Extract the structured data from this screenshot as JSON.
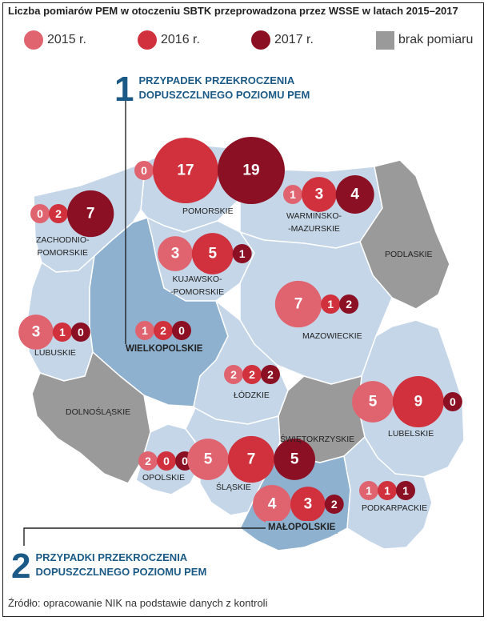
{
  "title": "Liczba pomiarów PEM w otoczeniu SBTK przeprowadzona przez WSSE w latach 2015–2017",
  "legend": {
    "items": [
      {
        "label": "2015 r.",
        "color": "#e06470"
      },
      {
        "label": "2016 r.",
        "color": "#d0313d"
      },
      {
        "label": "2017 r.",
        "color": "#8c1023"
      },
      {
        "label": "brak pomiaru",
        "color": "#9a9a9a"
      }
    ]
  },
  "callouts": [
    {
      "number": "1",
      "line1": "PRZYPADEK PRZEKROCZENIA",
      "line2": "DOPUSZCZLNEGO POZIOMU PEM"
    },
    {
      "number": "2",
      "line1": "PRZYPADKI PRZEKROCZENIA",
      "line2": "DOPUSZCZLNEGO POZIOMU PEM"
    }
  ],
  "regions": {
    "pomorskie": {
      "name": "POMORSKIE",
      "v2015": 0,
      "v2016": 17,
      "v2017": 19
    },
    "zachodniopomorskie": {
      "name1": "ZACHODNIO-",
      "name2": "POMORSKIE",
      "v2015": 0,
      "v2016": 2,
      "v2017": 7
    },
    "warminsko": {
      "name1": "WARMIŃSKO-",
      "name2": "-MAZURSKIE",
      "v2015": 1,
      "v2016": 3,
      "v2017": 4
    },
    "kujawsko": {
      "name1": "KUJAWSKO-",
      "name2": "-POMORSKIE",
      "v2015": 3,
      "v2016": 5,
      "v2017": 1
    },
    "podlaskie": {
      "name": "PODLASKIE"
    },
    "mazowieckie": {
      "name": "MAZOWIECKIE",
      "v2015": 7,
      "v2016": 1,
      "v2017": 2
    },
    "lubuskie": {
      "name": "LUBUSKIE",
      "v2015": 3,
      "v2016": 1,
      "v2017": 0
    },
    "wielkopolskie": {
      "name": "WIELKOPOLSKIE",
      "v2015": 1,
      "v2016": 2,
      "v2017": 0
    },
    "lodzkie": {
      "name": "ŁÓDZKIE",
      "v2015": 2,
      "v2016": 2,
      "v2017": 2
    },
    "dolnoslaskie": {
      "name": "DOLNOŚLĄSKIE"
    },
    "lubelskie": {
      "name": "LUBELSKIE",
      "v2015": 5,
      "v2016": 9,
      "v2017": 0
    },
    "swietokrzyskie": {
      "name": "ŚWIĘTOKRZYSKIE"
    },
    "opolskie": {
      "name": "OPOLSKIE",
      "v2015": 2,
      "v2016": 0,
      "v2017": 0
    },
    "slaskie": {
      "name": "ŚLĄSKIE",
      "v2015": 5,
      "v2016": 7,
      "v2017": 5
    },
    "podkarpackie": {
      "name": "PODKARPACKIE",
      "v2015": 1,
      "v2016": 1,
      "v2017": 1
    },
    "malopolskie": {
      "name": "MAŁOPOLSKIE",
      "v2015": 4,
      "v2016": 3,
      "v2017": 2
    }
  },
  "source": "Źródło: opracowanie NIK na podstawie danych z kontroli"
}
